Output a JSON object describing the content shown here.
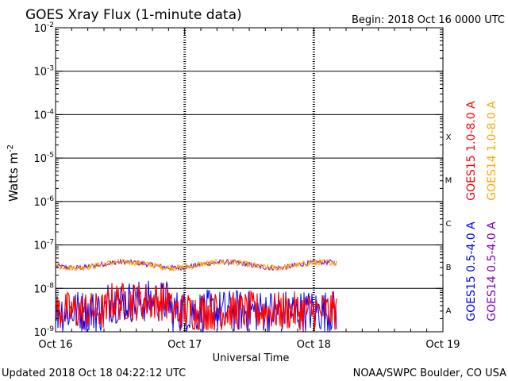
{
  "chart_data": {
    "type": "line",
    "title": "GOES Xray Flux (1-minute data)",
    "begin_label": "Begin:  2018 Oct 16 0000 UTC",
    "xlabel": "Universal Time",
    "ylabel": "Watts m",
    "ylabel_sup": "-2",
    "x_ticks": [
      "Oct 16",
      "Oct 17",
      "Oct 18",
      "Oct 19"
    ],
    "x_range_days": [
      0,
      3
    ],
    "data_end_day": 2.18,
    "y_scale": "log",
    "ylim": [
      1e-09,
      0.01
    ],
    "y_ticks": [
      {
        "base": "10",
        "exp": "-2"
      },
      {
        "base": "10",
        "exp": "-3"
      },
      {
        "base": "10",
        "exp": "-4"
      },
      {
        "base": "10",
        "exp": "-5"
      },
      {
        "base": "10",
        "exp": "-6"
      },
      {
        "base": "10",
        "exp": "-7"
      },
      {
        "base": "10",
        "exp": "-8"
      },
      {
        "base": "10",
        "exp": "-9"
      }
    ],
    "flare_classes": [
      {
        "label": "X",
        "exp": -4
      },
      {
        "label": "M",
        "exp": -5
      },
      {
        "label": "C",
        "exp": -6
      },
      {
        "label": "B",
        "exp": -7
      },
      {
        "label": "A",
        "exp": -8
      }
    ],
    "series": [
      {
        "name": "GOES15 1.0-8.0 A",
        "color": "#ff0000"
      },
      {
        "name": "GOES14 1.0-8.0 A",
        "color": "#ffa500"
      },
      {
        "name": "GOES15 0.5-4.0 A",
        "color": "#0000ff"
      },
      {
        "name": "GOES14 0.5-4.0 A",
        "color": "#7b00c8"
      }
    ]
  },
  "footer": {
    "updated": "Updated 2018 Oct 18 04:22:12 UTC",
    "credit": "NOAA/SWPC Boulder, CO USA"
  }
}
